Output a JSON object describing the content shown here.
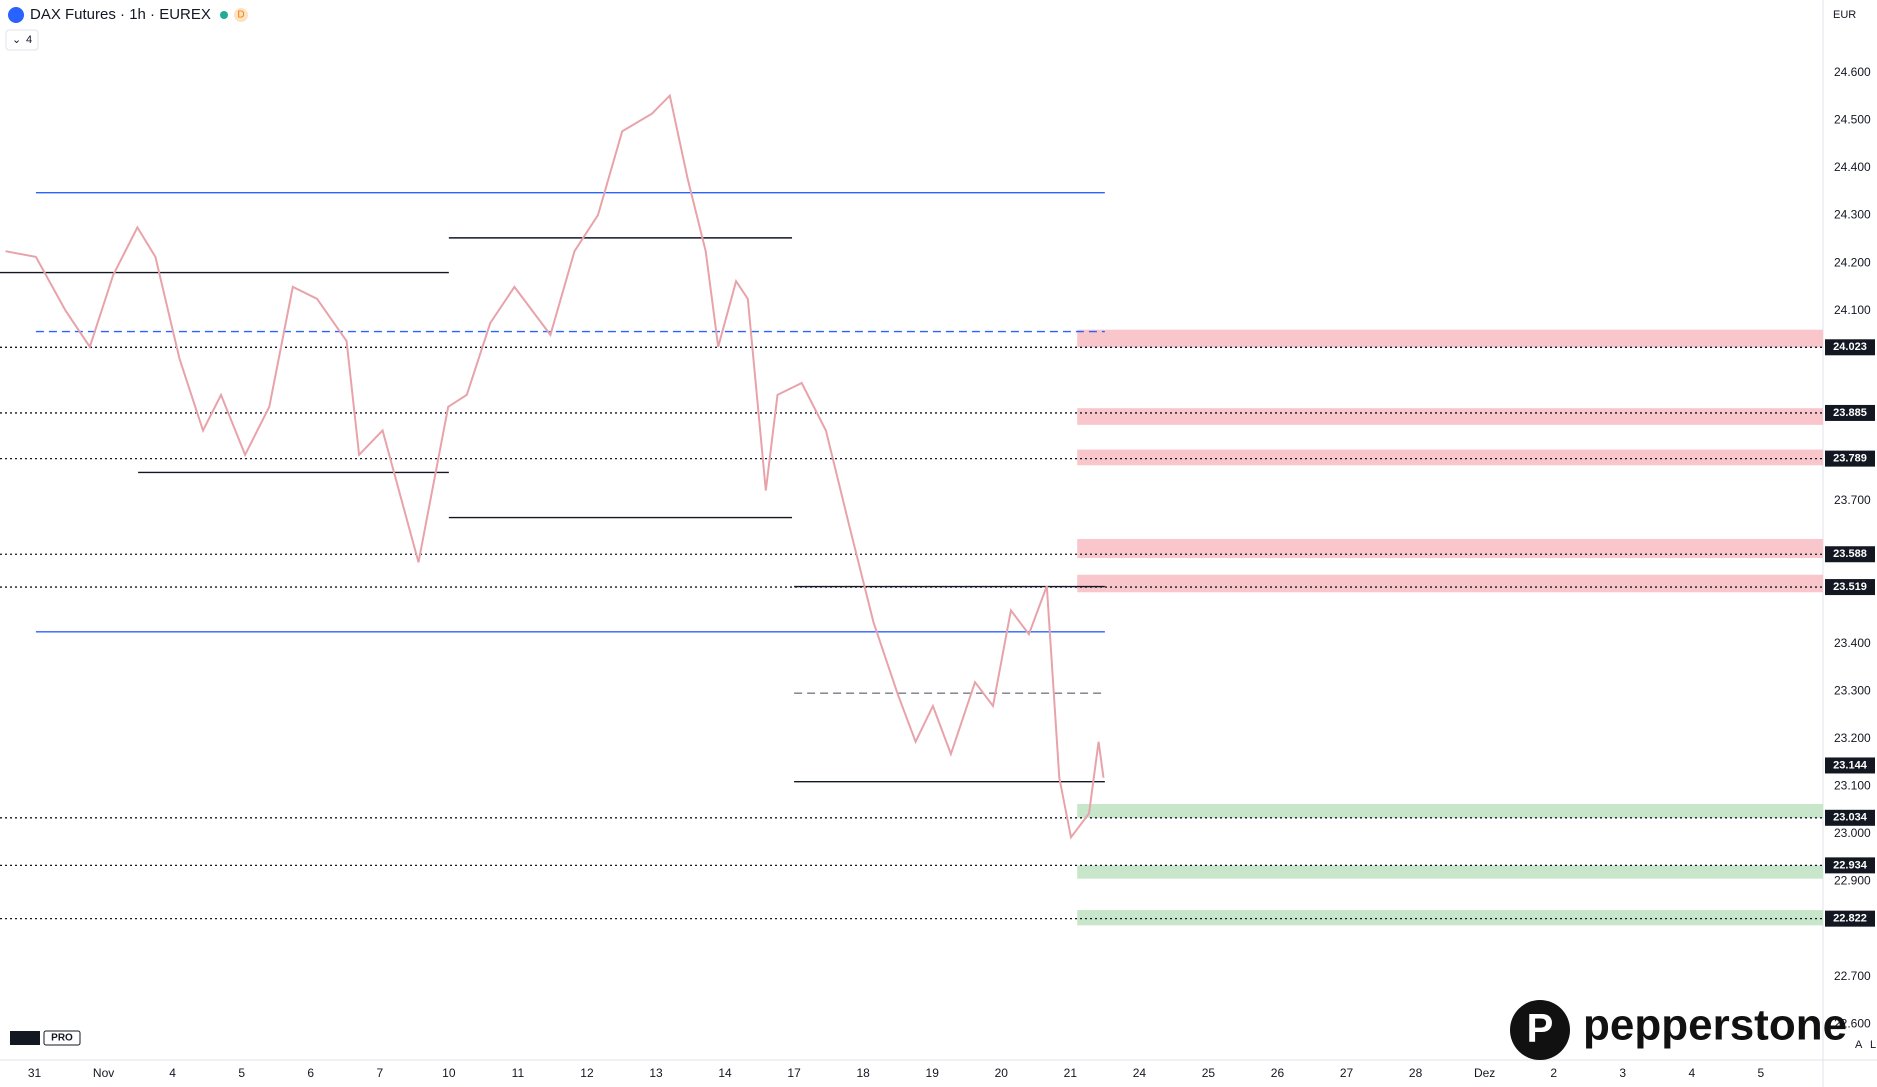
{
  "header": {
    "symbol": "DAX Futures · 1h · EUREX",
    "badge": "D",
    "indicators": "4",
    "currency": "EUR"
  },
  "footer": {
    "tv": "PRO",
    "brand": "pepperstone",
    "mode_a": "A",
    "mode_l": "L"
  },
  "chart_data": {
    "type": "line",
    "color": "#e8a3aa",
    "xlim": [
      -0.5,
      25.9
    ],
    "ylim": [
      22527,
      24753
    ],
    "xticks": [
      {
        "value": 0,
        "label": "31"
      },
      {
        "value": 1,
        "label": "Nov"
      },
      {
        "value": 2,
        "label": "4"
      },
      {
        "value": 3,
        "label": "5"
      },
      {
        "value": 4,
        "label": "6"
      },
      {
        "value": 5,
        "label": "7"
      },
      {
        "value": 6,
        "label": "10"
      },
      {
        "value": 7,
        "label": "11"
      },
      {
        "value": 8,
        "label": "12"
      },
      {
        "value": 9,
        "label": "13"
      },
      {
        "value": 10,
        "label": "14"
      },
      {
        "value": 11,
        "label": "17"
      },
      {
        "value": 12,
        "label": "18"
      },
      {
        "value": 13,
        "label": "19"
      },
      {
        "value": 14,
        "label": "20"
      },
      {
        "value": 15,
        "label": "21"
      },
      {
        "value": 16,
        "label": "24"
      },
      {
        "value": 17,
        "label": "25"
      },
      {
        "value": 18,
        "label": "26"
      },
      {
        "value": 19,
        "label": "27"
      },
      {
        "value": 20,
        "label": "28"
      },
      {
        "value": 21,
        "label": "Dez"
      },
      {
        "value": 22,
        "label": "2"
      },
      {
        "value": 23,
        "label": "3"
      },
      {
        "value": 24,
        "label": "4"
      },
      {
        "value": 25,
        "label": "5"
      }
    ],
    "yticks": [
      {
        "value": 24600,
        "label": "24.600"
      },
      {
        "value": 24500,
        "label": "24.500"
      },
      {
        "value": 24400,
        "label": "24.400"
      },
      {
        "value": 24300,
        "label": "24.300"
      },
      {
        "value": 24200,
        "label": "24.200"
      },
      {
        "value": 24100,
        "label": "24.100"
      },
      {
        "value": 23700,
        "label": "23.700"
      },
      {
        "value": 23400,
        "label": "23.400"
      },
      {
        "value": 23300,
        "label": "23.300"
      },
      {
        "value": 23200,
        "label": "23.200"
      },
      {
        "value": 23100,
        "label": "23.100"
      },
      {
        "value": 23000,
        "label": "23.000"
      },
      {
        "value": 22900,
        "label": "22.900"
      },
      {
        "value": 22700,
        "label": "22.700"
      },
      {
        "value": 22600,
        "label": "22.600"
      }
    ],
    "x": [
      -0.42,
      0.02,
      0.45,
      0.8,
      1.14,
      1.49,
      1.75,
      2.1,
      2.44,
      2.7,
      3.05,
      3.4,
      3.74,
      4.09,
      4.52,
      4.7,
      5.04,
      5.56,
      5.99,
      6.26,
      6.6,
      6.95,
      7.47,
      7.82,
      8.16,
      8.51,
      8.94,
      9.2,
      9.46,
      9.72,
      9.9,
      10.16,
      10.33,
      10.59,
      10.76,
      11.11,
      11.46,
      11.8,
      12.15,
      12.5,
      12.76,
      13.01,
      13.27,
      13.62,
      13.88,
      14.14,
      14.4,
      14.66,
      14.84,
      15.01,
      15.27,
      15.41,
      15.48
    ],
    "values": [
      24225,
      24213,
      24100,
      24024,
      24175,
      24275,
      24213,
      23999,
      23848,
      23923,
      23797,
      23898,
      24150,
      24125,
      24036,
      23797,
      23848,
      23571,
      23898,
      23923,
      24074,
      24150,
      24049,
      24225,
      24301,
      24477,
      24514,
      24552,
      24376,
      24225,
      24024,
      24162,
      24125,
      23722,
      23923,
      23948,
      23848,
      23647,
      23445,
      23294,
      23194,
      23269,
      23168,
      23319,
      23269,
      23470,
      23420,
      23521,
      23118,
      22993,
      23043,
      23194,
      23118
    ],
    "ref_lines": [
      {
        "value": 24348,
        "from": 0.02,
        "to": 15.5,
        "color": "#2962ff",
        "dash": false
      },
      {
        "value": 23425,
        "from": 0.02,
        "to": 15.5,
        "color": "#2962ff",
        "dash": false
      },
      {
        "value": 24056,
        "from": 0.02,
        "to": 15.5,
        "color": "#2962ff",
        "dash": true
      },
      {
        "value": 24253,
        "from": 6.0,
        "to": 10.97,
        "color": "#131722",
        "dash": false
      },
      {
        "value": 23665,
        "from": 6.0,
        "to": 10.97,
        "color": "#131722",
        "dash": false
      },
      {
        "value": 23520,
        "from": 11.0,
        "to": 15.5,
        "color": "#131722",
        "dash": false
      },
      {
        "value": 23110,
        "from": 11.0,
        "to": 15.5,
        "color": "#131722",
        "dash": false
      },
      {
        "value": 23296,
        "from": 11.0,
        "to": 15.5,
        "color": "#787b86",
        "dash": true
      },
      {
        "value": 24180,
        "from": -0.5,
        "to": 6.0,
        "color": "#131722",
        "dash": false
      },
      {
        "value": 23760,
        "from": 1.5,
        "to": 6.0,
        "color": "#131722",
        "dash": false
      }
    ],
    "levels": [
      {
        "value": 24023,
        "label": "24.023",
        "color": "#f8c6cb",
        "zone": [
          24023,
          24060
        ]
      },
      {
        "value": 23885,
        "label": "23.885",
        "color": "#f8c6cb",
        "zone": [
          23860,
          23895
        ]
      },
      {
        "value": 23789,
        "label": "23.789",
        "color": "#f8c6cb",
        "zone": [
          23775,
          23808
        ]
      },
      {
        "value": 23588,
        "label": "23.588",
        "color": "#f8c6cb",
        "zone": [
          23580,
          23620
        ]
      },
      {
        "value": 23519,
        "label": "23.519",
        "color": "#f8c6cb",
        "zone": [
          23508,
          23545
        ]
      },
      {
        "value": 23034,
        "label": "23.034",
        "color": "#c8e6c9",
        "zone": [
          23034,
          23063
        ]
      },
      {
        "value": 22934,
        "label": "22.934",
        "color": "#c8e6c9",
        "zone": [
          22906,
          22934
        ]
      },
      {
        "value": 22822,
        "label": "22.822",
        "color": "#c8e6c9",
        "zone": [
          22808,
          22840
        ]
      }
    ],
    "last_price": {
      "value": 23144,
      "label": "23.144"
    }
  }
}
